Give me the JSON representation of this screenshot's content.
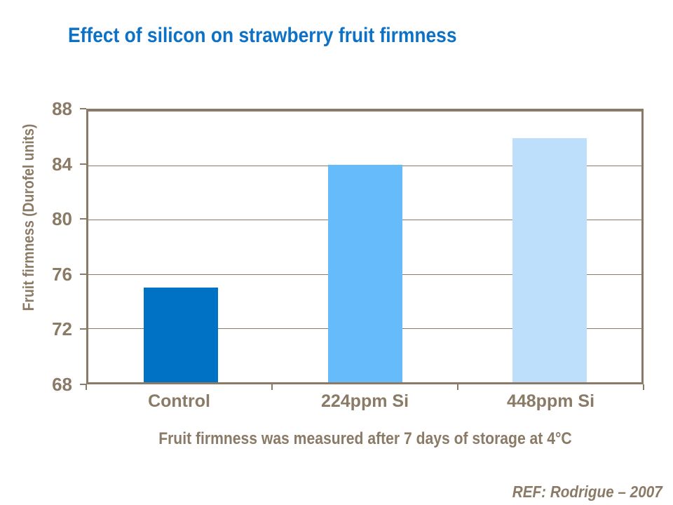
{
  "colors": {
    "title_blue": "#0D72C6",
    "text_brown": "#8A7A66"
  },
  "slide": {
    "caption": "Fruit firmness was measured after 7 days of storage at 4°C",
    "reference": "REF: Rodrigue – 2007"
  },
  "chart_data": {
    "type": "bar",
    "title": "Effect of silicon on strawberry fruit firmness",
    "categories": [
      "Control",
      "224ppm Si",
      "448ppm Si"
    ],
    "values": [
      75,
      84,
      86
    ],
    "xlabel": "",
    "ylabel": "Fruit firmness (Durofel units)",
    "ylim": [
      68,
      88
    ],
    "yticks": [
      68,
      72,
      76,
      80,
      84,
      88
    ],
    "grid": "horizontal",
    "legend": "none",
    "bar_colors": [
      "#0072C6",
      "#66BBFB",
      "#BDDFFB"
    ],
    "axis_color": "#8A7A66"
  }
}
